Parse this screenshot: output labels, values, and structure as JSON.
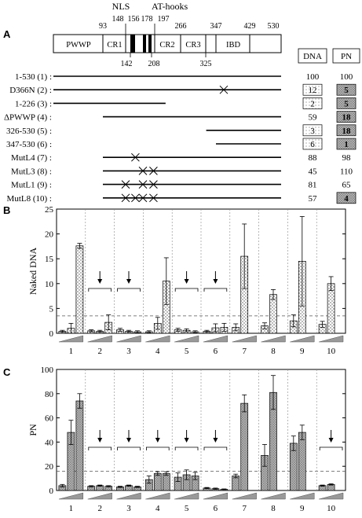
{
  "panels": {
    "a": "A",
    "b": "B",
    "c": "C"
  },
  "domain_map": {
    "top_labels": {
      "nls": "NLS",
      "at_hooks": "AT-hooks"
    },
    "positions_top": [
      "93",
      "148",
      "156",
      "178",
      "197",
      "266",
      "347",
      "429",
      "530"
    ],
    "positions_bottom": [
      "142",
      "208",
      "325"
    ],
    "domains": [
      "PWWP",
      "CR1",
      "CR2",
      "CR3",
      "IBD"
    ]
  },
  "table": {
    "headers": {
      "dna": "DNA",
      "pn": "PN"
    },
    "constructs": [
      {
        "label": "1-530 (1) :",
        "dna": "100",
        "pn": "100",
        "dna_box": false,
        "pn_box": false,
        "pn_fill": "",
        "crosses": []
      },
      {
        "label": "D366N (2) :",
        "dna": "12",
        "pn": "5",
        "dna_box": true,
        "pn_box": true,
        "pn_fill": "#b8b8b8",
        "crosses": [
          366
        ]
      },
      {
        "label": "1-226 (3) :",
        "dna": "2",
        "pn": "5",
        "dna_box": true,
        "pn_box": true,
        "pn_fill": "#b8b8b8",
        "crosses": []
      },
      {
        "label": "ΔPWWP (4) :",
        "dna": "59",
        "pn": "18",
        "dna_box": false,
        "pn_box": true,
        "pn_fill": "#b8b8b8",
        "crosses": []
      },
      {
        "label": "326-530 (5) :",
        "dna": "3",
        "pn": "18",
        "dna_box": true,
        "pn_box": true,
        "pn_fill": "#b8b8b8",
        "crosses": []
      },
      {
        "label": "347-530 (6) :",
        "dna": "6",
        "pn": "1",
        "dna_box": true,
        "pn_box": true,
        "pn_fill": "#b8b8b8",
        "crosses": []
      },
      {
        "label": "MutL4 (7) :",
        "dna": "88",
        "pn": "98",
        "dna_box": false,
        "pn_box": false,
        "pn_fill": "",
        "crosses": [
          160
        ]
      },
      {
        "label": "MutL3 (8) :",
        "dna": "45",
        "pn": "110",
        "dna_box": false,
        "pn_box": false,
        "pn_fill": "",
        "crosses": [
          178,
          195
        ]
      },
      {
        "label": "MutL1 (9) :",
        "dna": "81",
        "pn": "65",
        "dna_box": false,
        "pn_box": false,
        "pn_fill": "",
        "crosses": [
          142,
          178,
          195
        ]
      },
      {
        "label": "MutL8 (10) :",
        "dna": "57",
        "pn": "4",
        "dna_box": false,
        "pn_box": true,
        "pn_fill": "#b8b8b8",
        "crosses": [
          142,
          160,
          178,
          195
        ]
      }
    ]
  },
  "chart_data": [
    {
      "type": "bar",
      "panel": "B",
      "ylabel": "Naked DNA",
      "ylim": [
        0,
        25
      ],
      "yticks": [
        "0",
        "5",
        "10",
        "15",
        "20",
        "25"
      ],
      "categories": [
        "1",
        "2",
        "3",
        "4",
        "5",
        "6",
        "7",
        "8",
        "9",
        "10"
      ],
      "values": [
        [
          0.4,
          1.0,
          17.6
        ],
        [
          0.5,
          0.4,
          2.2
        ],
        [
          0.7,
          0.4,
          0.3
        ],
        [
          0.3,
          2.0,
          10.5
        ],
        [
          0.7,
          0.6,
          0.3
        ],
        [
          0.4,
          1.1,
          1.2
        ],
        [
          1.2,
          15.5,
          0
        ],
        [
          1.5,
          7.8,
          0
        ],
        [
          2.5,
          14.5,
          0
        ],
        [
          1.8,
          10.0,
          0
        ]
      ],
      "errors": [
        [
          0.2,
          1.0,
          0.5
        ],
        [
          0.2,
          0.2,
          1.5
        ],
        [
          0.3,
          0.2,
          0.2
        ],
        [
          0.2,
          1.2,
          4.7
        ],
        [
          0.3,
          0.3,
          0.2
        ],
        [
          0.2,
          0.8,
          0.8
        ],
        [
          0.7,
          6.5,
          0
        ],
        [
          0.6,
          1.0,
          0
        ],
        [
          1.2,
          9.0,
          0
        ],
        [
          0.6,
          1.4,
          0
        ]
      ],
      "threshold": 3.5,
      "arrows": [
        "2",
        "3",
        "5",
        "6"
      ],
      "fill": "dots"
    },
    {
      "type": "bar",
      "panel": "C",
      "ylabel": "PN",
      "ylim": [
        0,
        100
      ],
      "yticks": [
        "0",
        "20",
        "40",
        "60",
        "80",
        "100"
      ],
      "categories": [
        "1",
        "2",
        "3",
        "4",
        "5",
        "6",
        "7",
        "8",
        "9",
        "10"
      ],
      "values": [
        [
          4,
          48,
          74
        ],
        [
          3.5,
          4,
          3.5
        ],
        [
          3,
          4,
          3
        ],
        [
          9,
          14,
          14
        ],
        [
          11,
          13,
          12
        ],
        [
          2,
          1.5,
          1
        ],
        [
          12,
          72,
          0
        ],
        [
          29,
          81,
          0
        ],
        [
          39,
          48,
          0
        ],
        [
          4,
          5,
          0
        ]
      ],
      "errors": [
        [
          1,
          10,
          6
        ],
        [
          0.5,
          0.5,
          0.5
        ],
        [
          0.5,
          0.5,
          0.5
        ],
        [
          3,
          1.5,
          1.5
        ],
        [
          3.5,
          4,
          3
        ],
        [
          0.5,
          0.5,
          0.3
        ],
        [
          1.5,
          7,
          0
        ],
        [
          9,
          14,
          0
        ],
        [
          6,
          6,
          0
        ],
        [
          0.5,
          0.5,
          0
        ]
      ],
      "threshold": 16,
      "arrows": [
        "2",
        "3",
        "4",
        "5",
        "6",
        "10"
      ],
      "fill": "cross"
    }
  ]
}
